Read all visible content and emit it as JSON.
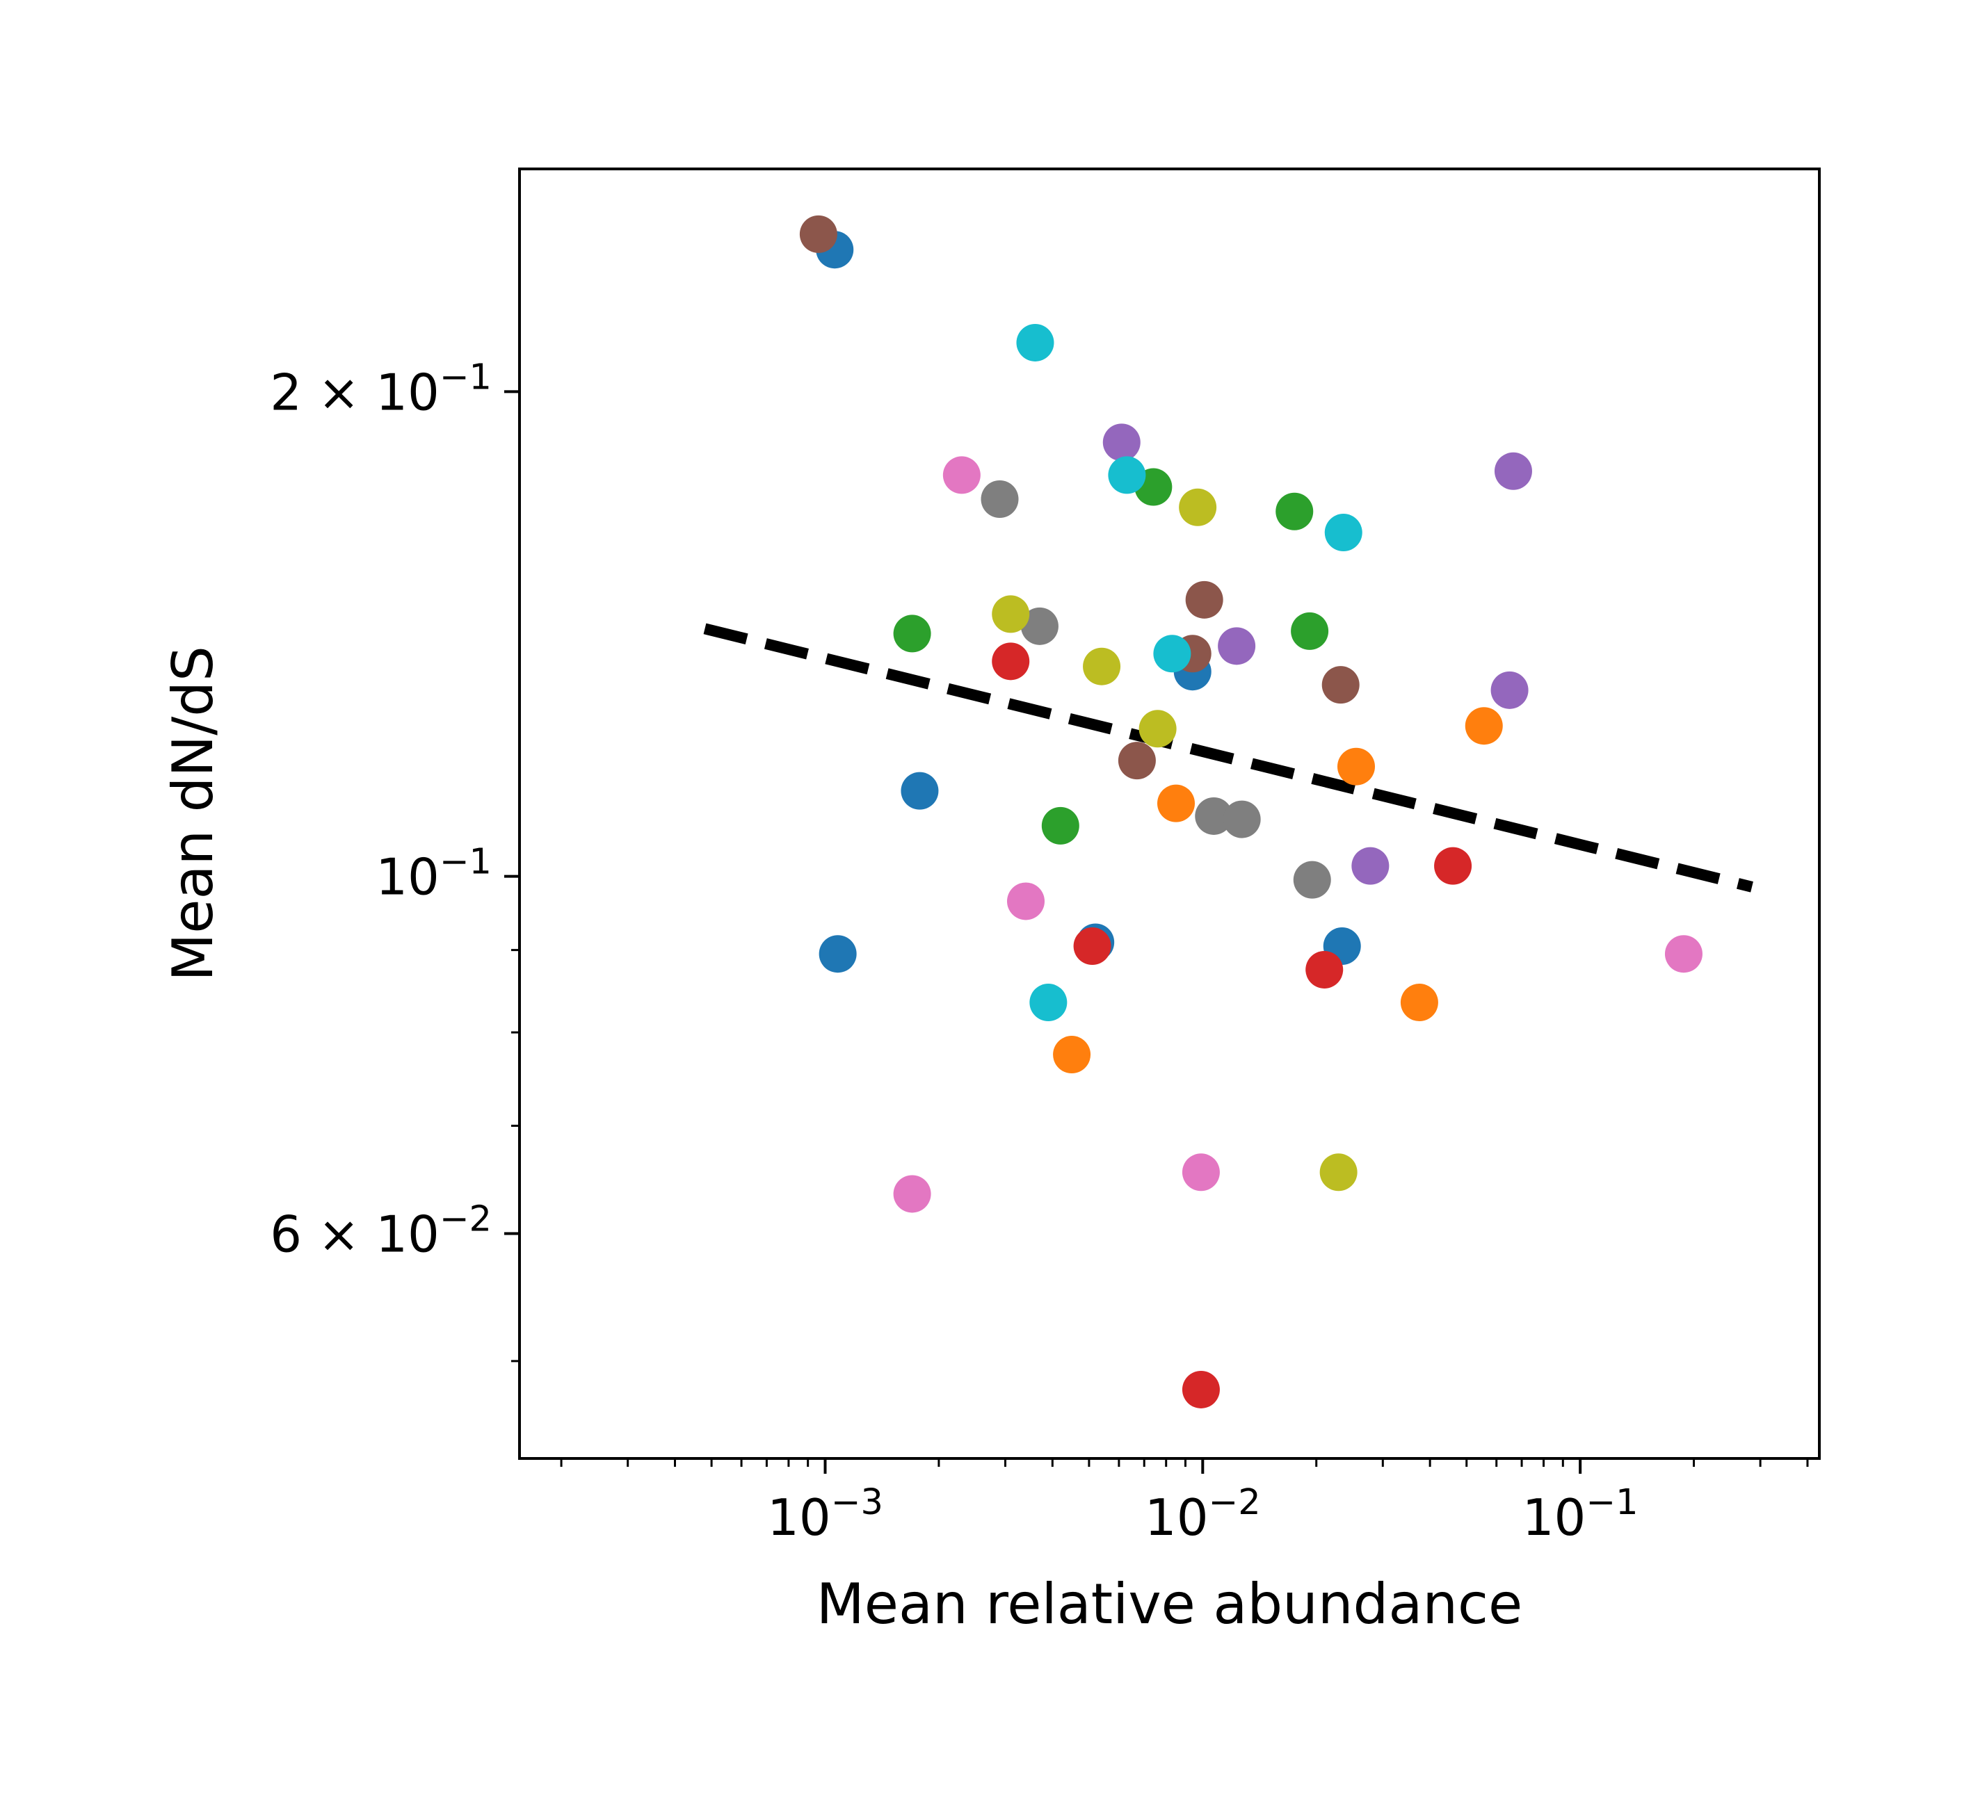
{
  "chart_data": {
    "type": "scatter",
    "xlabel": "Mean relative abundance",
    "ylabel": "Mean dN/dS",
    "xscale": "log",
    "yscale": "log",
    "xlim": [
      0.000155,
      0.43
    ],
    "ylim": [
      0.0435,
      0.275
    ],
    "grid": false,
    "legend": "none",
    "x_ticks": [
      {
        "value": 0.001,
        "base": "10",
        "exp": "−3"
      },
      {
        "value": 0.01,
        "base": "10",
        "exp": "−2"
      },
      {
        "value": 0.1,
        "base": "10",
        "exp": "−1"
      }
    ],
    "y_ticks": [
      {
        "value": 0.2,
        "base": "2 × 10",
        "exp": "−1"
      },
      {
        "value": 0.1,
        "base": "10",
        "exp": "−1"
      },
      {
        "value": 0.06,
        "base": "6 × 10",
        "exp": "−2"
      }
    ],
    "colors": {
      "blue": "#1f77b4",
      "orange": "#ff7f0e",
      "green": "#2ca02c",
      "red": "#d62728",
      "purple": "#9467bd",
      "brown": "#8c564b",
      "pink": "#e377c2",
      "gray": "#7f7f7f",
      "olive": "#bcbd22",
      "cyan": "#17becf"
    },
    "points": [
      {
        "x": 0.00106,
        "y": 0.245,
        "c": "blue"
      },
      {
        "x": 0.00108,
        "y": 0.0895,
        "c": "blue"
      },
      {
        "x": 0.00178,
        "y": 0.113,
        "c": "blue"
      },
      {
        "x": 0.0052,
        "y": 0.091,
        "c": "blue"
      },
      {
        "x": 0.0094,
        "y": 0.134,
        "c": "blue"
      },
      {
        "x": 0.0234,
        "y": 0.0905,
        "c": "blue"
      },
      {
        "x": 0.0255,
        "y": 0.117,
        "c": "orange"
      },
      {
        "x": 0.0556,
        "y": 0.124,
        "c": "orange"
      },
      {
        "x": 0.0085,
        "y": 0.111,
        "c": "orange"
      },
      {
        "x": 0.0045,
        "y": 0.0775,
        "c": "orange"
      },
      {
        "x": 0.0375,
        "y": 0.0835,
        "c": "orange"
      },
      {
        "x": 0.0017,
        "y": 0.1415,
        "c": "green"
      },
      {
        "x": 0.0074,
        "y": 0.1745,
        "c": "green"
      },
      {
        "x": 0.0175,
        "y": 0.1685,
        "c": "green"
      },
      {
        "x": 0.0192,
        "y": 0.142,
        "c": "green"
      },
      {
        "x": 0.0042,
        "y": 0.1075,
        "c": "green"
      },
      {
        "x": 0.0031,
        "y": 0.136,
        "c": "red"
      },
      {
        "x": 0.0051,
        "y": 0.0905,
        "c": "red"
      },
      {
        "x": 0.021,
        "y": 0.0875,
        "c": "red"
      },
      {
        "x": 0.046,
        "y": 0.1015,
        "c": "red"
      },
      {
        "x": 0.0099,
        "y": 0.048,
        "c": "red"
      },
      {
        "x": 0.0061,
        "y": 0.186,
        "c": "purple"
      },
      {
        "x": 0.0123,
        "y": 0.139,
        "c": "purple"
      },
      {
        "x": 0.0278,
        "y": 0.1015,
        "c": "purple"
      },
      {
        "x": 0.0665,
        "y": 0.1785,
        "c": "purple"
      },
      {
        "x": 0.065,
        "y": 0.1305,
        "c": "purple"
      },
      {
        "x": 0.00096,
        "y": 0.2505,
        "c": "brown"
      },
      {
        "x": 0.0101,
        "y": 0.1485,
        "c": "brown"
      },
      {
        "x": 0.0094,
        "y": 0.1375,
        "c": "brown"
      },
      {
        "x": 0.0067,
        "y": 0.118,
        "c": "brown"
      },
      {
        "x": 0.0232,
        "y": 0.1315,
        "c": "brown"
      },
      {
        "x": 0.0023,
        "y": 0.1775,
        "c": "pink"
      },
      {
        "x": 0.0034,
        "y": 0.0965,
        "c": "pink"
      },
      {
        "x": 0.0017,
        "y": 0.0635,
        "c": "pink"
      },
      {
        "x": 0.0099,
        "y": 0.0655,
        "c": "pink"
      },
      {
        "x": 0.188,
        "y": 0.0895,
        "c": "pink"
      },
      {
        "x": 0.0029,
        "y": 0.1715,
        "c": "gray"
      },
      {
        "x": 0.0037,
        "y": 0.143,
        "c": "gray"
      },
      {
        "x": 0.0107,
        "y": 0.109,
        "c": "gray"
      },
      {
        "x": 0.0127,
        "y": 0.1085,
        "c": "gray"
      },
      {
        "x": 0.0195,
        "y": 0.0995,
        "c": "gray"
      },
      {
        "x": 0.0031,
        "y": 0.1455,
        "c": "olive"
      },
      {
        "x": 0.0054,
        "y": 0.135,
        "c": "olive"
      },
      {
        "x": 0.0076,
        "y": 0.1235,
        "c": "olive"
      },
      {
        "x": 0.0097,
        "y": 0.1695,
        "c": "olive"
      },
      {
        "x": 0.0229,
        "y": 0.0655,
        "c": "olive"
      },
      {
        "x": 0.0036,
        "y": 0.2145,
        "c": "cyan"
      },
      {
        "x": 0.0063,
        "y": 0.1775,
        "c": "cyan"
      },
      {
        "x": 0.0083,
        "y": 0.1375,
        "c": "cyan"
      },
      {
        "x": 0.0236,
        "y": 0.1635,
        "c": "cyan"
      },
      {
        "x": 0.0039,
        "y": 0.0835,
        "c": "cyan"
      }
    ],
    "fit_line": {
      "style": "dashed",
      "color": "#000000",
      "points": [
        [
          0.00048,
          0.1425
        ],
        [
          0.285,
          0.0985
        ]
      ]
    }
  }
}
